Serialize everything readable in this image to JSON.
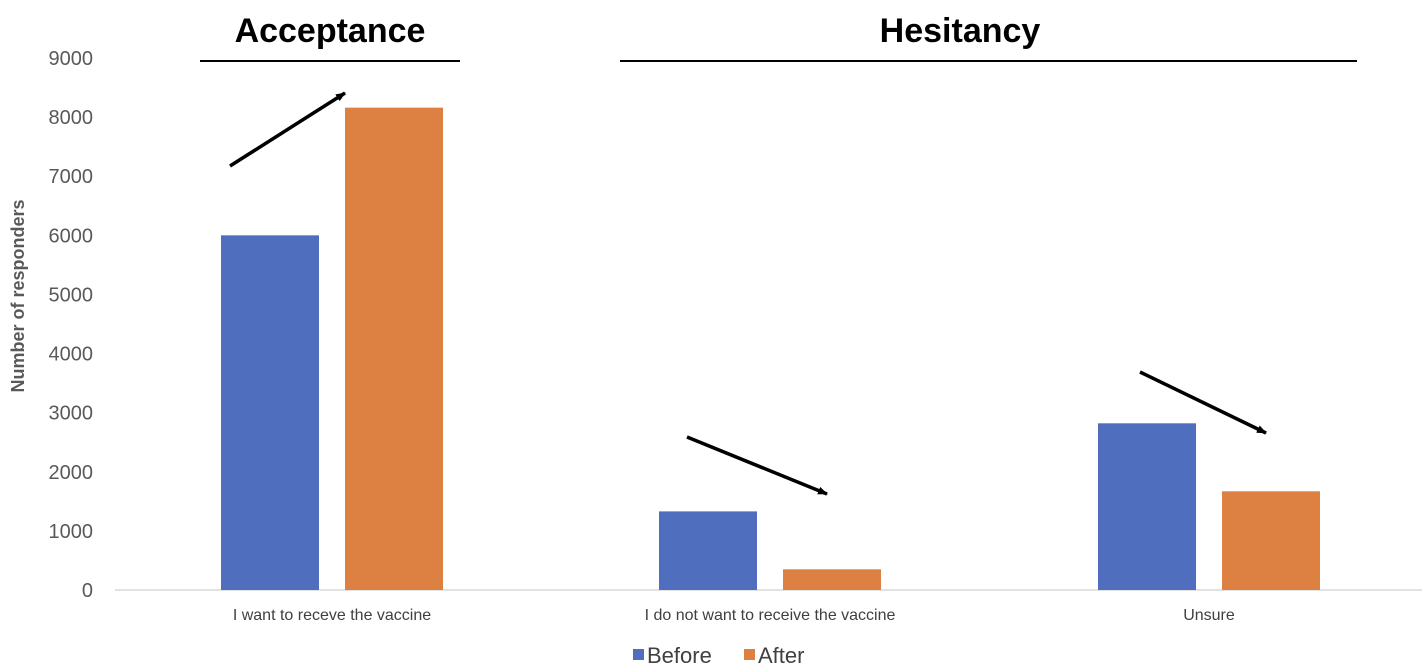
{
  "chart_data": {
    "type": "bar",
    "title": "",
    "xlabel": "",
    "ylabel": "Number of responders",
    "ylim": [
      0,
      9000
    ],
    "yticks": [
      0,
      1000,
      2000,
      3000,
      4000,
      5000,
      6000,
      7000,
      8000,
      9000
    ],
    "categories": [
      "I want to receve the vaccine",
      "I do not want to receive the vaccine",
      "Unsure"
    ],
    "series": [
      {
        "name": "Before",
        "color": "#4F6FBE",
        "values": [
          6000,
          1330,
          2820
        ]
      },
      {
        "name": "After",
        "color": "#DD8142",
        "values": [
          8160,
          350,
          1670
        ]
      }
    ],
    "group_titles": [
      {
        "label": "Acceptance",
        "categories": [
          0
        ]
      },
      {
        "label": "Hesitancy",
        "categories": [
          1,
          2
        ]
      }
    ],
    "trend_arrows": [
      "up",
      "down",
      "down"
    ],
    "legend_position": "bottom",
    "grid": false
  }
}
